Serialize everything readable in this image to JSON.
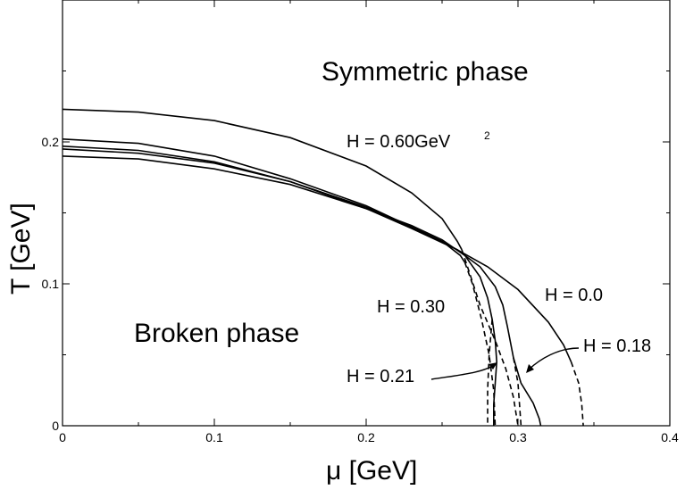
{
  "chart_data": {
    "type": "line",
    "xlabel": "μ [GeV]",
    "ylabel": "T [GeV]",
    "xlim": [
      0,
      0.4
    ],
    "ylim": [
      0,
      0.3
    ],
    "x_ticks": [
      "0",
      "0.1",
      "0.2",
      "0.3",
      "0.4"
    ],
    "y_ticks": [
      "0",
      "0.1",
      "0.2"
    ],
    "grid": false,
    "region_labels": [
      "Symmetric phase",
      "Broken phase"
    ],
    "annotations": [
      "H = 0.60GeV",
      "2",
      "H = 0.30",
      "H = 0.0",
      "H = 0.18",
      "H = 0.21"
    ],
    "series": [
      {
        "name": "H = 0.0",
        "solid": [
          [
            0,
            0.197
          ],
          [
            0.05,
            0.194
          ],
          [
            0.1,
            0.186
          ],
          [
            0.15,
            0.172
          ],
          [
            0.2,
            0.153
          ],
          [
            0.23,
            0.139
          ],
          [
            0.26,
            0.124
          ],
          [
            0.28,
            0.112
          ],
          [
            0.3,
            0.096
          ],
          [
            0.32,
            0.073
          ],
          [
            0.33,
            0.057
          ],
          [
            0.335,
            0.045
          ]
        ],
        "dashed": [
          [
            0.335,
            0.045
          ],
          [
            0.34,
            0.03
          ],
          [
            0.342,
            0.015
          ],
          [
            0.343,
            0
          ]
        ]
      },
      {
        "name": "H = 0.18",
        "solid": [
          [
            0,
            0.195
          ],
          [
            0.05,
            0.192
          ],
          [
            0.1,
            0.185
          ],
          [
            0.15,
            0.172
          ],
          [
            0.2,
            0.154
          ],
          [
            0.24,
            0.135
          ],
          [
            0.26,
            0.124
          ],
          [
            0.275,
            0.112
          ],
          [
            0.285,
            0.098
          ],
          [
            0.29,
            0.085
          ],
          [
            0.293,
            0.07
          ],
          [
            0.297,
            0.048
          ],
          [
            0.302,
            0.03
          ],
          [
            0.31,
            0.016
          ],
          [
            0.314,
            0.005
          ],
          [
            0.315,
            0
          ]
        ],
        "dashed": [
          [
            0.297,
            0.048
          ],
          [
            0.3,
            0.03
          ],
          [
            0.301,
            0.015
          ],
          [
            0.302,
            0
          ]
        ]
      },
      {
        "name": "H = 0.21",
        "solid": [
          [
            0,
            0.19
          ],
          [
            0.05,
            0.188
          ],
          [
            0.1,
            0.181
          ],
          [
            0.15,
            0.17
          ],
          [
            0.2,
            0.153
          ],
          [
            0.23,
            0.141
          ],
          [
            0.25,
            0.131
          ],
          [
            0.265,
            0.12
          ],
          [
            0.275,
            0.105
          ],
          [
            0.28,
            0.09
          ],
          [
            0.283,
            0.075
          ],
          [
            0.285,
            0.06
          ],
          [
            0.286,
            0.045
          ],
          [
            0.285,
            0.03
          ],
          [
            0.284,
            0.015
          ],
          [
            0.284,
            0
          ]
        ],
        "dashed": [
          [
            0.283,
            0.075
          ],
          [
            0.281,
            0.05
          ],
          [
            0.28,
            0.025
          ],
          [
            0.28,
            0
          ]
        ]
      },
      {
        "name": "H = 0.30",
        "solid": [
          [
            0,
            0.202
          ],
          [
            0.05,
            0.199
          ],
          [
            0.1,
            0.19
          ],
          [
            0.15,
            0.174
          ],
          [
            0.2,
            0.155
          ],
          [
            0.23,
            0.14
          ],
          [
            0.25,
            0.13
          ],
          [
            0.262,
            0.12
          ],
          [
            0.265,
            0.115
          ]
        ],
        "dashed": [
          [
            0.265,
            0.115
          ],
          [
            0.27,
            0.1
          ],
          [
            0.276,
            0.075
          ],
          [
            0.281,
            0.05
          ],
          [
            0.284,
            0.025
          ],
          [
            0.285,
            0
          ]
        ]
      },
      {
        "name": "H = 0.60GeV²",
        "solid": [
          [
            0,
            0.223
          ],
          [
            0.05,
            0.221
          ],
          [
            0.1,
            0.215
          ],
          [
            0.15,
            0.203
          ],
          [
            0.2,
            0.183
          ],
          [
            0.23,
            0.164
          ],
          [
            0.25,
            0.146
          ],
          [
            0.26,
            0.13
          ],
          [
            0.263,
            0.124
          ]
        ],
        "dashed": [
          [
            0.263,
            0.124
          ],
          [
            0.268,
            0.108
          ],
          [
            0.275,
            0.085
          ],
          [
            0.285,
            0.06
          ],
          [
            0.292,
            0.04
          ],
          [
            0.297,
            0.02
          ],
          [
            0.3,
            0
          ]
        ]
      }
    ]
  }
}
